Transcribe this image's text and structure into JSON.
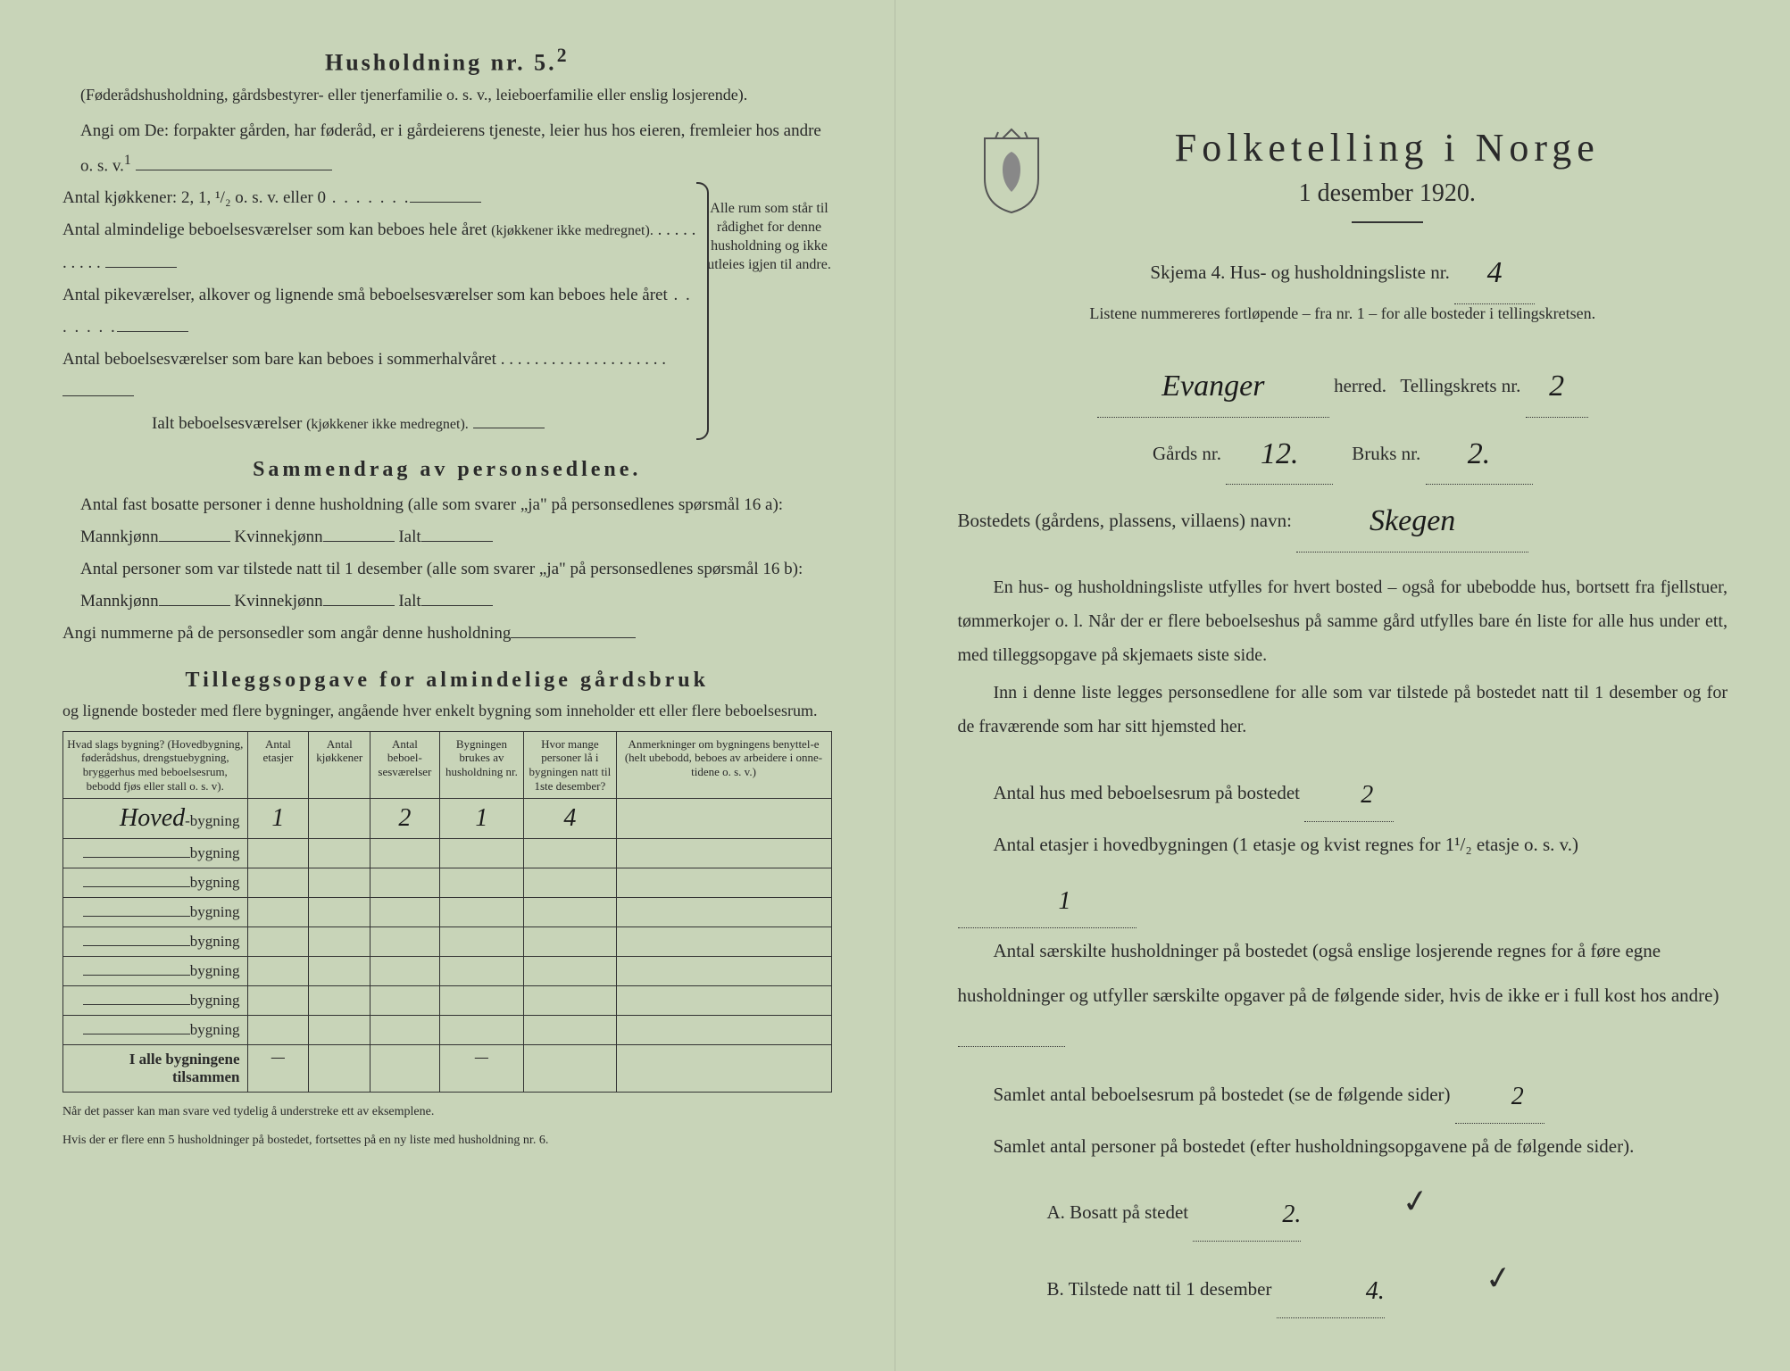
{
  "left": {
    "heading5": "Husholdning nr. 5.",
    "heading5_super": "2",
    "note5": "(Føderådshusholdning, gårdsbestyrer- eller tjenerfamilie o. s. v., leieboerfamilie eller enslig losjerende).",
    "angi_om": "Angi om De:  forpakter gården, har føderåd, er i gårdeierens tjeneste, leier hus hos eieren, fremleier hos andre o. s. v.",
    "angi_super": "1",
    "kjokken": "Antal kjøkkener: 2, 1, ¹/₂ o. s. v. eller 0",
    "alm_bebo": "Antal almindelige beboelsesværelser som kan beboes hele året",
    "alm_bebo_note": "(kjøkkener ikke medregnet).",
    "pike": "Antal pikeværelser, alkover og lignende små beboelses­værelser som kan beboes hele året",
    "sommer": "Antal beboelsesværelser som bare kan beboes i som­merhalvåret",
    "ialt_bebo": "Ialt beboelsesværelser",
    "ialt_note": "(kjøkkener ikke medregnet).",
    "brace_text": "Alle rum som står til rådighet for denne hushold­ning og ikke ut­leies igjen til andre.",
    "sammendrag_h": "Sammendrag av personsedlene.",
    "fast_bosatt": "Antal fast bosatte personer i denne husholdning (alle som svarer „ja\" på personsedlenes spørsmål 16 a): Mannkjønn",
    "kvinne": "Kvinnekjønn",
    "ialt": "Ialt",
    "tilstede": "Antal personer som var tilstede natt til 1 desember (alle som svarer „ja\" på personsedlenes spørsmål 16 b): Mannkjønn",
    "angi_num": "Angi nummerne på de personsedler som angår denne husholdning",
    "tillegg_h": "Tilleggsopgave for almindelige gårdsbruk",
    "tillegg_note": "og lignende bosteder med flere bygninger, angående hver enkelt bygning som inneholder ett eller flere beboelsesrum.",
    "table": {
      "headers": [
        "Hvad slags bygning?\n(Hovedbygning, føderådshus, drengstuebygning, bryggerhus med beboelsesrum, bebodd fjøs eller stall o. s. v).",
        "Antal etasjer",
        "Antal kjøkke­ner",
        "Antal beboel­sesvæ­relser",
        "Bygningen brukes av hushold­ning nr.",
        "Hvor mange personer lå i bygningen natt til 1ste desember?",
        "Anmerkninger om bygnin­gens benyttel-e (helt ubebodd, beboes av arbeidere i onne­tidene o. s. v.)"
      ],
      "row_label": "bygning",
      "rows": [
        {
          "type": "Hoved",
          "et": "1",
          "kj": "",
          "bv": "2",
          "hn": "1",
          "pl": "4",
          "anm": ""
        },
        {
          "type": "",
          "et": "",
          "kj": "",
          "bv": "",
          "hn": "",
          "pl": "",
          "anm": ""
        },
        {
          "type": "",
          "et": "",
          "kj": "",
          "bv": "",
          "hn": "",
          "pl": "",
          "anm": ""
        },
        {
          "type": "",
          "et": "",
          "kj": "",
          "bv": "",
          "hn": "",
          "pl": "",
          "anm": ""
        },
        {
          "type": "",
          "et": "",
          "kj": "",
          "bv": "",
          "hn": "",
          "pl": "",
          "anm": ""
        },
        {
          "type": "",
          "et": "",
          "kj": "",
          "bv": "",
          "hn": "",
          "pl": "",
          "anm": ""
        },
        {
          "type": "",
          "et": "",
          "kj": "",
          "bv": "",
          "hn": "",
          "pl": "",
          "anm": ""
        },
        {
          "type": "",
          "et": "",
          "kj": "",
          "bv": "",
          "hn": "",
          "pl": "",
          "anm": ""
        }
      ],
      "footer": "I alle bygningene tilsammen",
      "dash": "—"
    },
    "footnote1": "Når det passer kan man svare ved tydelig å understreke ett av eksemplene.",
    "footnote2": "Hvis der er flere enn 5 husholdninger på bostedet, fortsettes på en ny liste med husholdning nr. 6."
  },
  "right": {
    "main_title": "Folketelling i Norge",
    "subtitle": "1 desember 1920.",
    "skjema": "Skjema 4.  Hus- og husholdningsliste nr.",
    "skjema_val": "4",
    "listene": "Listene nummereres fortløpende – fra nr. 1 – for alle bosteder i tellingskretsen.",
    "herred_label": "herred.",
    "herred_val": "Evanger",
    "krets_label": "Tellingskrets nr.",
    "krets_val": "2",
    "gards_label": "Gårds nr.",
    "gards_val": "12.",
    "bruks_label": "Bruks nr.",
    "bruks_val": "2.",
    "bosted_label": "Bostedets (gårdens, plassens, villaens) navn:",
    "bosted_val": "Skegen",
    "para1": "En hus- og husholdningsliste utfylles for hvert bosted – også for ubebodde hus, bortsett fra fjellstuer, tømmerkojer o. l.  Når der er flere beboelseshus på samme gård utfylles bare én liste for alle hus under ett, med tilleggsopgave på skjemaets siste side.",
    "para2": "Inn i denne liste legges personsedlene for alle som var tilstede på bostedet natt til 1 desember og for de fraværende som har sitt hjemsted her.",
    "q_hus": "Antal hus med beboelsesrum på bostedet",
    "q_hus_val": "2",
    "q_etasjer": "Antal etasjer i hovedbygningen (1 etasje og kvist regnes for 1¹/₂ etasje o. s. v.)",
    "q_etasjer_val": "1",
    "q_hushold": "Antal særskilte husholdninger på bostedet (også enslige losjerende regnes for å føre egne husholdninger og utfyller særskilte opgaver på de følgende sider, hvis de ikke er i full kost hos andre)",
    "q_hushold_val": "",
    "q_beboerum": "Samlet antal beboelsesrum på bostedet (se de følgende sider)",
    "q_beboerum_val": "2",
    "q_personer": "Samlet antal personer på bostedet (efter husholdningsopgavene på de følgende sider).",
    "q_a": "A.  Bosatt på stedet",
    "q_a_val": "2.",
    "q_b": "B.  Tilstede natt til 1 desember",
    "q_b_val": "4."
  },
  "colors": {
    "paper": "#c8d4b8",
    "ink": "#2a2a2a",
    "handwriting": "#1a1a1a"
  }
}
